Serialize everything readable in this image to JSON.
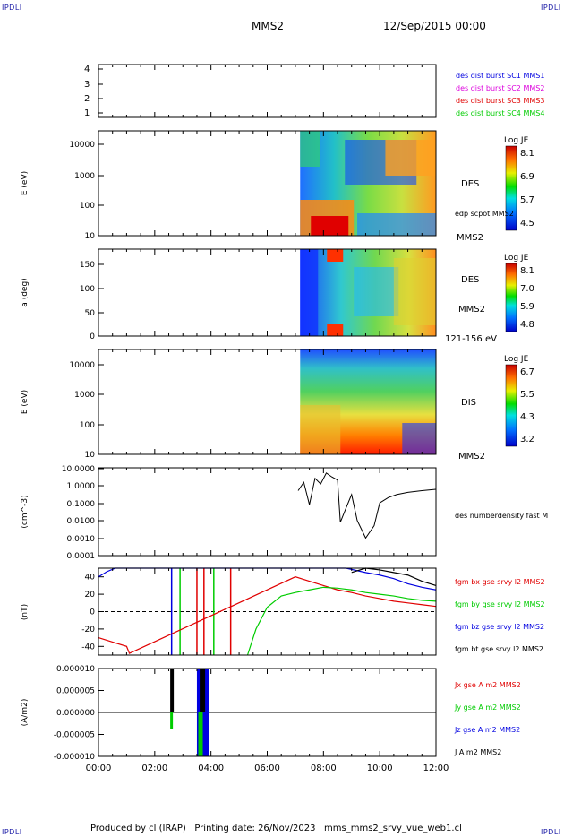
{
  "corner_labels": [
    "IPDLI",
    "IPDLI",
    "IPDLI",
    "IPDLI"
  ],
  "header": {
    "spacecraft": "MMS2",
    "datetime": "12/Sep/2015 00:00"
  },
  "footer": {
    "text": "Produced by cl (IRAP)   Printing date: 26/Nov/2023   mms_mms2_srvy_vue_web1.cl"
  },
  "colors": {
    "red": "#e00000",
    "green": "#00cc00",
    "blue": "#0000e0",
    "black": "#000000",
    "magenta": "#dd00dd"
  },
  "chart_data": [
    {
      "type": "table",
      "panel": "burst-availability",
      "yticks": [
        "4",
        "3",
        "2",
        "1"
      ],
      "legend": [
        {
          "text": "des dist burst SC1 MMS1",
          "color": "#0000e0"
        },
        {
          "text": "des dist burst SC2 MMS2",
          "color": "#dd00dd"
        },
        {
          "text": "des dist burst SC3 MMS3",
          "color": "#e00000"
        },
        {
          "text": "des dist burst SC4 MMS4",
          "color": "#00cc00"
        }
      ]
    },
    {
      "type": "heatmap",
      "panel": "des-energy",
      "ylabel": "E (eV)",
      "yticks": [
        "10000",
        "1000",
        "100",
        "10"
      ],
      "ylim": [
        10,
        30000
      ],
      "log_y": true,
      "data_start": "07:10",
      "colorbar": {
        "title": "Log JE",
        "ticks": [
          "8.1",
          "6.9",
          "5.7",
          "4.5"
        ]
      },
      "labels": [
        "DES",
        "edp scpot MMS2",
        "MMS2"
      ]
    },
    {
      "type": "heatmap",
      "panel": "des-pitch-angle",
      "ylabel": "a (deg)",
      "yticks": [
        "150",
        "100",
        "50",
        "0"
      ],
      "ylim": [
        0,
        180
      ],
      "data_start": "07:10",
      "colorbar": {
        "title": "Log JE",
        "ticks": [
          "8.1",
          "7.0",
          "5.9",
          "4.8"
        ]
      },
      "labels": [
        "DES",
        "MMS2",
        "121-156 eV"
      ]
    },
    {
      "type": "heatmap",
      "panel": "dis-energy",
      "ylabel": "E (eV)",
      "yticks": [
        "10000",
        "1000",
        "100",
        "10"
      ],
      "ylim": [
        10,
        30000
      ],
      "log_y": true,
      "data_start": "07:10",
      "colorbar": {
        "title": "Log JE",
        "ticks": [
          "6.7",
          "5.5",
          "4.3",
          "3.2"
        ]
      },
      "labels": [
        "DIS",
        "MMS2"
      ]
    },
    {
      "type": "line",
      "panel": "density",
      "ylabel": "(cm^-3)",
      "yticks": [
        "10.0000",
        "1.0000",
        "0.1000",
        "0.0100",
        "0.0010",
        "0.0001"
      ],
      "ylim": [
        0.0001,
        10
      ],
      "log_y": true,
      "series": [
        {
          "name": "des numberdensity fast M",
          "color": "#000000",
          "x": [
            7.1,
            7.3,
            7.5,
            7.7,
            7.9,
            8.1,
            8.3,
            8.5,
            8.6,
            8.8,
            9.0,
            9.2,
            9.5,
            9.8,
            10.0,
            10.3,
            10.6,
            11.0,
            11.5,
            12.0
          ],
          "y": [
            0.5,
            1.5,
            0.08,
            2.5,
            1.2,
            5.0,
            3.0,
            2.0,
            0.008,
            0.05,
            0.3,
            0.01,
            0.001,
            0.005,
            0.1,
            0.2,
            0.3,
            0.4,
            0.5,
            0.6
          ]
        }
      ]
    },
    {
      "type": "line",
      "panel": "magnetic-field",
      "ylabel": "(nT)",
      "yticks": [
        "40",
        "20",
        "0",
        "-20",
        "-40"
      ],
      "ylim": [
        -50,
        50
      ],
      "series": [
        {
          "name": "fgm bx gse srvy l2 MMS2",
          "color": "#e00000",
          "x": [
            0.0,
            0.5,
            1.0,
            1.1,
            7.0,
            7.5,
            8.0,
            8.5,
            9.0,
            9.5,
            10.0,
            10.5,
            11.0,
            11.5,
            12.0
          ],
          "y": [
            -30,
            -35,
            -40,
            -48,
            40,
            35,
            30,
            25,
            22,
            18,
            15,
            12,
            10,
            8,
            6
          ]
        },
        {
          "name": "fgm by gse srvy l2 MMS2",
          "color": "#00cc00",
          "x": [
            5.3,
            5.6,
            6.0,
            6.5,
            7.0,
            7.5,
            8.0,
            8.5,
            9.0,
            9.5,
            10.0,
            10.5,
            11.0,
            11.5,
            12.0
          ],
          "y": [
            -50,
            -20,
            5,
            18,
            22,
            25,
            28,
            27,
            25,
            22,
            20,
            18,
            15,
            13,
            12
          ]
        },
        {
          "name": "fgm bz gse srvy l2 MMS2",
          "color": "#0000e0",
          "x": [
            0.0,
            0.3,
            0.6,
            8.8,
            9.5,
            10.0,
            10.5,
            11.0,
            11.5,
            12.0
          ],
          "y": [
            40,
            46,
            50,
            50,
            45,
            42,
            38,
            32,
            28,
            25
          ]
        },
        {
          "name": "fgm bt gse srvy l2 MMS2",
          "color": "#000000",
          "x": [
            9.0,
            9.5,
            10.0,
            10.5,
            11.0,
            11.5,
            12.0
          ],
          "y": [
            45,
            50,
            48,
            45,
            42,
            35,
            30
          ]
        }
      ]
    },
    {
      "type": "line",
      "panel": "current-density",
      "ylabel": "(A/m2)",
      "yticks": [
        "0.000010",
        "0.000005",
        "0.000000",
        "-0.000005",
        "-0.000010"
      ],
      "ylim": [
        -1e-05,
        1e-05
      ],
      "xticks": [
        "00:00",
        "02:00",
        "04:00",
        "06:00",
        "08:00",
        "10:00",
        "12:00"
      ],
      "xlim_hours": [
        0,
        12
      ],
      "legend": [
        {
          "text": "Jx gse A m2 MMS2",
          "color": "#e00000"
        },
        {
          "text": "Jy gse A m2 MMS2",
          "color": "#00cc00"
        },
        {
          "text": "Jz gse A m2 MMS2",
          "color": "#0000e0"
        },
        {
          "text": "J A m2 MMS2",
          "color": "#000000"
        }
      ]
    }
  ]
}
